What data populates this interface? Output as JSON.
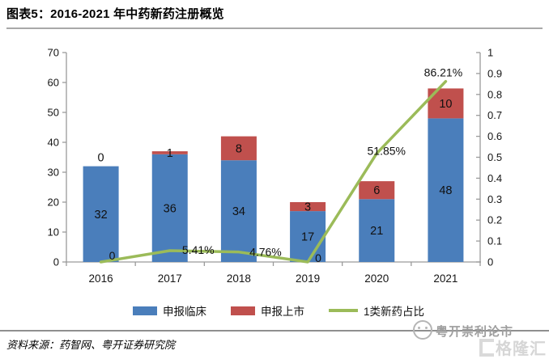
{
  "header": {
    "title": "图表5：2016-2021 年中药新药注册概览"
  },
  "chart_data": {
    "type": "bar",
    "subtype": "stacked-bars-with-line",
    "title": "图表5：2016-2021 年中药新药注册概览",
    "categories": [
      "2016",
      "2017",
      "2018",
      "2019",
      "2020",
      "2021"
    ],
    "series": [
      {
        "name": "申报临床",
        "type": "bar",
        "stack": true,
        "axis": "left",
        "color": "#4a7ebb",
        "values": [
          32,
          36,
          34,
          17,
          21,
          48
        ]
      },
      {
        "name": "申报上市",
        "type": "bar",
        "stack": true,
        "axis": "left",
        "color": "#c0504d",
        "values": [
          0,
          1,
          8,
          3,
          6,
          10
        ]
      },
      {
        "name": "1类新药占比",
        "type": "line",
        "axis": "right",
        "color": "#9bbb59",
        "values": [
          0,
          0.0541,
          0.0476,
          0,
          0.5185,
          0.8621
        ],
        "labels": [
          "0",
          "5.41%",
          "4.76%",
          "0",
          "51.85%",
          "86.21%"
        ]
      }
    ],
    "left_axis": {
      "min": 0,
      "max": 70,
      "step": 10,
      "ticks": [
        0,
        10,
        20,
        30,
        40,
        50,
        60,
        70
      ]
    },
    "right_axis": {
      "min": 0,
      "max": 1,
      "step": 0.1,
      "ticks": [
        0,
        0.1,
        0.2,
        0.3,
        0.4,
        0.5,
        0.6,
        0.7,
        0.8,
        0.9,
        1
      ]
    },
    "legend_position": "bottom",
    "grid": false,
    "axis_color": "#9a9a9a"
  },
  "footer": {
    "source": "资料来源：药智网、粤开证券研究院"
  },
  "watermark": {
    "brand": "粤开崇利论市",
    "logo2": "格隆汇"
  }
}
